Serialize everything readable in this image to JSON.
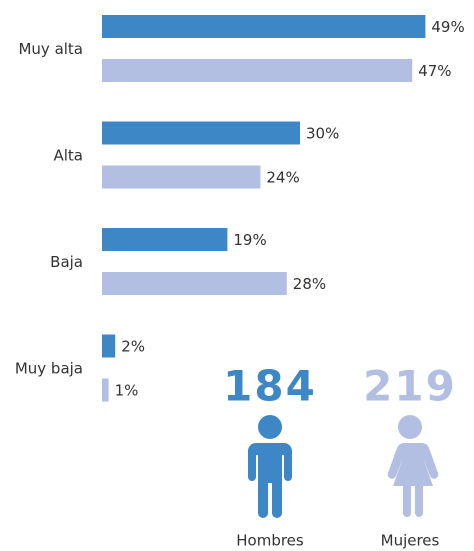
{
  "chart_data": {
    "type": "bar",
    "orientation": "horizontal",
    "categories": [
      "Muy alta",
      "Alta",
      "Baja",
      "Muy baja"
    ],
    "series": [
      {
        "name": "Hombres",
        "color": "#3d87c7",
        "count": 184,
        "values": [
          49,
          30,
          19,
          2
        ],
        "value_labels": [
          "49%",
          "30%",
          "19%",
          "2%"
        ]
      },
      {
        "name": "Mujeres",
        "color": "#b2bfe3",
        "count": 219,
        "values": [
          47,
          24,
          28,
          1
        ],
        "value_labels": [
          "47%",
          "24%",
          "28%",
          "1%"
        ]
      }
    ]
  }
}
